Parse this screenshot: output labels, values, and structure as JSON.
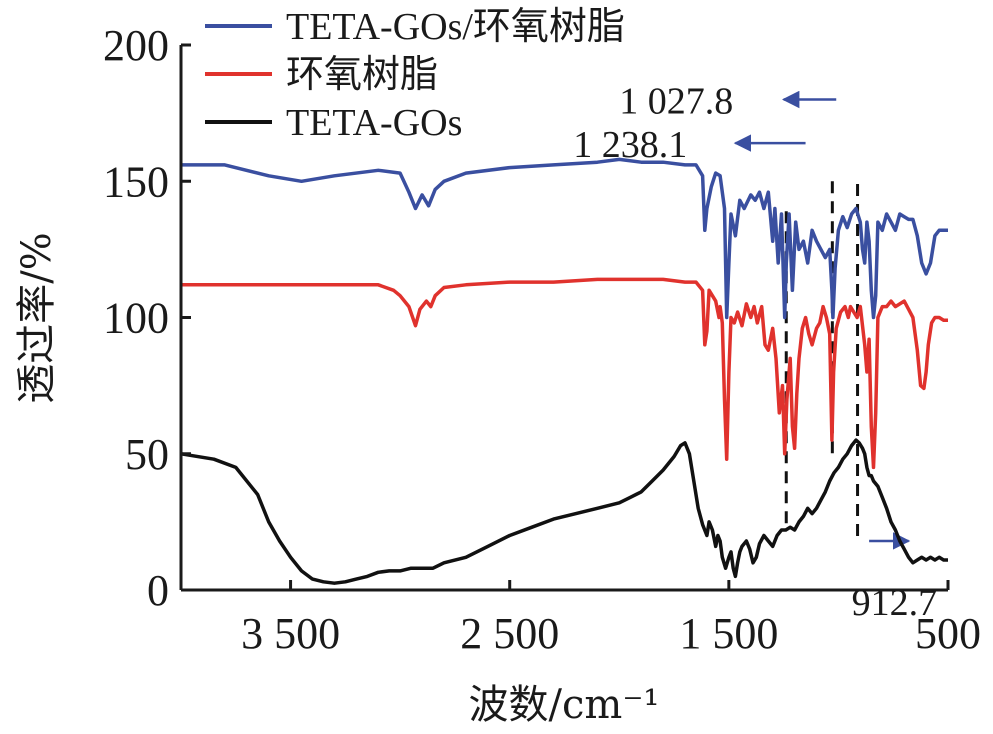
{
  "chart_data": {
    "type": "line",
    "title": "",
    "xlabel": "波数/cm⁻¹",
    "ylabel": "透过率/%",
    "xlim": [
      4000,
      500
    ],
    "ylim": [
      0,
      200
    ],
    "x_reversed": true,
    "xticks": [
      {
        "value": 3500,
        "label": "3 500"
      },
      {
        "value": 2500,
        "label": "2 500"
      },
      {
        "value": 1500,
        "label": "1 500"
      },
      {
        "value": 500,
        "label": "500"
      }
    ],
    "yticks": [
      {
        "value": 0,
        "label": "0"
      },
      {
        "value": 50,
        "label": "50"
      },
      {
        "value": 100,
        "label": "100"
      },
      {
        "value": 150,
        "label": "150"
      },
      {
        "value": 200,
        "label": "200"
      }
    ],
    "legend_position": "top-left",
    "series": [
      {
        "name": "TETA-GOs/环氧树脂",
        "color": "#3a4fa0",
        "points": [
          [
            4000,
            156
          ],
          [
            3800,
            156
          ],
          [
            3600,
            152
          ],
          [
            3450,
            150
          ],
          [
            3300,
            152
          ],
          [
            3100,
            154
          ],
          [
            3000,
            153
          ],
          [
            2960,
            146
          ],
          [
            2930,
            140
          ],
          [
            2900,
            145
          ],
          [
            2870,
            141
          ],
          [
            2840,
            147
          ],
          [
            2800,
            150
          ],
          [
            2700,
            153
          ],
          [
            2500,
            155
          ],
          [
            2300,
            156
          ],
          [
            2100,
            157
          ],
          [
            2000,
            158
          ],
          [
            1900,
            157
          ],
          [
            1800,
            157
          ],
          [
            1700,
            156
          ],
          [
            1650,
            156
          ],
          [
            1620,
            152
          ],
          [
            1610,
            132
          ],
          [
            1600,
            140
          ],
          [
            1580,
            148
          ],
          [
            1560,
            153
          ],
          [
            1540,
            152
          ],
          [
            1520,
            140
          ],
          [
            1510,
            100
          ],
          [
            1500,
            120
          ],
          [
            1490,
            138
          ],
          [
            1470,
            130
          ],
          [
            1450,
            143
          ],
          [
            1430,
            140
          ],
          [
            1400,
            145
          ],
          [
            1380,
            143
          ],
          [
            1360,
            146
          ],
          [
            1340,
            140
          ],
          [
            1320,
            146
          ],
          [
            1300,
            128
          ],
          [
            1290,
            140
          ],
          [
            1275,
            120
          ],
          [
            1260,
            138
          ],
          [
            1245,
            100
          ],
          [
            1238,
            120
          ],
          [
            1225,
            138
          ],
          [
            1210,
            110
          ],
          [
            1195,
            135
          ],
          [
            1180,
            125
          ],
          [
            1160,
            128
          ],
          [
            1140,
            120
          ],
          [
            1120,
            132
          ],
          [
            1100,
            128
          ],
          [
            1080,
            125
          ],
          [
            1060,
            122
          ],
          [
            1040,
            125
          ],
          [
            1030,
            110
          ],
          [
            1025,
            100
          ],
          [
            1015,
            118
          ],
          [
            1000,
            132
          ],
          [
            980,
            137
          ],
          [
            960,
            133
          ],
          [
            940,
            138
          ],
          [
            920,
            140
          ],
          [
            900,
            135
          ],
          [
            890,
            125
          ],
          [
            880,
            120
          ],
          [
            870,
            135
          ],
          [
            860,
            128
          ],
          [
            850,
            110
          ],
          [
            840,
            100
          ],
          [
            830,
            108
          ],
          [
            820,
            135
          ],
          [
            800,
            132
          ],
          [
            780,
            138
          ],
          [
            760,
            135
          ],
          [
            740,
            132
          ],
          [
            720,
            138
          ],
          [
            700,
            137
          ],
          [
            680,
            136
          ],
          [
            660,
            136
          ],
          [
            640,
            130
          ],
          [
            620,
            120
          ],
          [
            600,
            116
          ],
          [
            580,
            120
          ],
          [
            560,
            130
          ],
          [
            540,
            132
          ],
          [
            520,
            132
          ],
          [
            500,
            132
          ]
        ]
      },
      {
        "name": "环氧树脂",
        "color": "#e0322d",
        "points": [
          [
            4000,
            112
          ],
          [
            3800,
            112
          ],
          [
            3600,
            112
          ],
          [
            3400,
            112
          ],
          [
            3200,
            112
          ],
          [
            3100,
            112
          ],
          [
            3030,
            110
          ],
          [
            3000,
            108
          ],
          [
            2960,
            104
          ],
          [
            2930,
            97
          ],
          [
            2910,
            103
          ],
          [
            2880,
            106
          ],
          [
            2860,
            104
          ],
          [
            2840,
            108
          ],
          [
            2800,
            111
          ],
          [
            2700,
            112
          ],
          [
            2500,
            113
          ],
          [
            2300,
            113
          ],
          [
            2100,
            114
          ],
          [
            2000,
            114
          ],
          [
            1900,
            114
          ],
          [
            1800,
            114
          ],
          [
            1700,
            113
          ],
          [
            1650,
            113
          ],
          [
            1620,
            110
          ],
          [
            1610,
            90
          ],
          [
            1600,
            95
          ],
          [
            1590,
            110
          ],
          [
            1575,
            108
          ],
          [
            1560,
            106
          ],
          [
            1545,
            100
          ],
          [
            1540,
            104
          ],
          [
            1530,
            98
          ],
          [
            1520,
            70
          ],
          [
            1510,
            48
          ],
          [
            1500,
            80
          ],
          [
            1490,
            100
          ],
          [
            1475,
            98
          ],
          [
            1460,
            102
          ],
          [
            1440,
            97
          ],
          [
            1420,
            105
          ],
          [
            1400,
            100
          ],
          [
            1385,
            104
          ],
          [
            1370,
            98
          ],
          [
            1350,
            104
          ],
          [
            1335,
            90
          ],
          [
            1320,
            88
          ],
          [
            1300,
            96
          ],
          [
            1285,
            85
          ],
          [
            1270,
            65
          ],
          [
            1255,
            75
          ],
          [
            1245,
            50
          ],
          [
            1235,
            70
          ],
          [
            1220,
            85
          ],
          [
            1210,
            60
          ],
          [
            1200,
            52
          ],
          [
            1190,
            72
          ],
          [
            1180,
            85
          ],
          [
            1165,
            96
          ],
          [
            1150,
            100
          ],
          [
            1135,
            94
          ],
          [
            1120,
            90
          ],
          [
            1100,
            96
          ],
          [
            1085,
            98
          ],
          [
            1070,
            104
          ],
          [
            1055,
            100
          ],
          [
            1040,
            94
          ],
          [
            1030,
            55
          ],
          [
            1022,
            80
          ],
          [
            1010,
            96
          ],
          [
            990,
            102
          ],
          [
            970,
            104
          ],
          [
            955,
            100
          ],
          [
            945,
            104
          ],
          [
            930,
            102
          ],
          [
            915,
            100
          ],
          [
            900,
            104
          ],
          [
            880,
            90
          ],
          [
            870,
            80
          ],
          [
            860,
            92
          ],
          [
            850,
            60
          ],
          [
            840,
            45
          ],
          [
            830,
            65
          ],
          [
            820,
            100
          ],
          [
            800,
            104
          ],
          [
            780,
            104
          ],
          [
            760,
            106
          ],
          [
            740,
            104
          ],
          [
            720,
            105
          ],
          [
            700,
            106
          ],
          [
            680,
            103
          ],
          [
            660,
            100
          ],
          [
            640,
            88
          ],
          [
            625,
            75
          ],
          [
            610,
            74
          ],
          [
            600,
            80
          ],
          [
            590,
            90
          ],
          [
            575,
            98
          ],
          [
            560,
            100
          ],
          [
            540,
            100
          ],
          [
            520,
            99
          ],
          [
            500,
            99
          ]
        ]
      },
      {
        "name": "TETA-GOs",
        "color": "#111111",
        "points": [
          [
            4000,
            50
          ],
          [
            3850,
            48
          ],
          [
            3750,
            45
          ],
          [
            3650,
            35
          ],
          [
            3600,
            25
          ],
          [
            3550,
            18
          ],
          [
            3500,
            12
          ],
          [
            3450,
            7
          ],
          [
            3400,
            4
          ],
          [
            3350,
            3
          ],
          [
            3300,
            2.5
          ],
          [
            3250,
            3
          ],
          [
            3200,
            4
          ],
          [
            3150,
            5
          ],
          [
            3100,
            6.5
          ],
          [
            3050,
            7
          ],
          [
            3000,
            7
          ],
          [
            2950,
            8
          ],
          [
            2900,
            8
          ],
          [
            2850,
            8
          ],
          [
            2800,
            10
          ],
          [
            2700,
            12
          ],
          [
            2600,
            16
          ],
          [
            2500,
            20
          ],
          [
            2400,
            23
          ],
          [
            2300,
            26
          ],
          [
            2200,
            28
          ],
          [
            2100,
            30
          ],
          [
            2000,
            32
          ],
          [
            1950,
            34
          ],
          [
            1900,
            36
          ],
          [
            1850,
            40
          ],
          [
            1800,
            44
          ],
          [
            1750,
            49
          ],
          [
            1720,
            53
          ],
          [
            1700,
            54
          ],
          [
            1680,
            50
          ],
          [
            1660,
            40
          ],
          [
            1640,
            30
          ],
          [
            1620,
            24
          ],
          [
            1600,
            20
          ],
          [
            1590,
            25
          ],
          [
            1575,
            22
          ],
          [
            1560,
            16
          ],
          [
            1550,
            20
          ],
          [
            1540,
            18
          ],
          [
            1530,
            12
          ],
          [
            1515,
            8
          ],
          [
            1500,
            12
          ],
          [
            1490,
            14
          ],
          [
            1480,
            8
          ],
          [
            1470,
            5
          ],
          [
            1460,
            10
          ],
          [
            1450,
            14
          ],
          [
            1440,
            16
          ],
          [
            1420,
            18
          ],
          [
            1405,
            15
          ],
          [
            1390,
            10
          ],
          [
            1375,
            12
          ],
          [
            1360,
            17
          ],
          [
            1340,
            20
          ],
          [
            1320,
            18
          ],
          [
            1300,
            16
          ],
          [
            1280,
            20
          ],
          [
            1260,
            22
          ],
          [
            1240,
            22
          ],
          [
            1220,
            23
          ],
          [
            1200,
            22
          ],
          [
            1180,
            25
          ],
          [
            1160,
            27
          ],
          [
            1140,
            30
          ],
          [
            1120,
            28
          ],
          [
            1100,
            30
          ],
          [
            1080,
            33
          ],
          [
            1060,
            36
          ],
          [
            1040,
            40
          ],
          [
            1020,
            43
          ],
          [
            1000,
            45
          ],
          [
            980,
            48
          ],
          [
            960,
            50
          ],
          [
            940,
            53
          ],
          [
            920,
            55
          ],
          [
            905,
            54
          ],
          [
            890,
            52
          ],
          [
            880,
            50
          ],
          [
            870,
            45
          ],
          [
            860,
            42
          ],
          [
            850,
            42
          ],
          [
            840,
            40
          ],
          [
            820,
            38
          ],
          [
            800,
            34
          ],
          [
            780,
            30
          ],
          [
            760,
            25
          ],
          [
            740,
            22
          ],
          [
            720,
            18
          ],
          [
            700,
            15
          ],
          [
            680,
            12
          ],
          [
            660,
            10
          ],
          [
            640,
            11
          ],
          [
            620,
            12
          ],
          [
            600,
            11
          ],
          [
            580,
            12
          ],
          [
            560,
            11
          ],
          [
            540,
            12
          ],
          [
            520,
            11
          ],
          [
            500,
            11
          ]
        ]
      }
    ],
    "reference_lines": [
      {
        "x": 1238.1,
        "y_top": 139,
        "y_bottom": 22,
        "label": "1 238.1",
        "label_x": 1690,
        "label_y": 164,
        "label_anchor": "end",
        "arrow_from_x": 1150,
        "arrow_to_x": 1470,
        "arrow_y": 164
      },
      {
        "x": 1027.8,
        "y_top": 150,
        "y_bottom": 50,
        "label": "1 027.8",
        "label_x": 1480,
        "label_y": 180,
        "label_anchor": "end",
        "arrow_from_x": 1010,
        "arrow_to_x": 1250,
        "arrow_y": 180
      },
      {
        "x": 912.7,
        "y_top": 149,
        "y_bottom": 18,
        "label": "912.7",
        "label_x": 940,
        "label_y": -4,
        "label_anchor": "start",
        "arrow_from_x": 860,
        "arrow_to_x": 680,
        "arrow_y": 18
      }
    ],
    "annotation_arrow_color": "#3a4fa0"
  }
}
